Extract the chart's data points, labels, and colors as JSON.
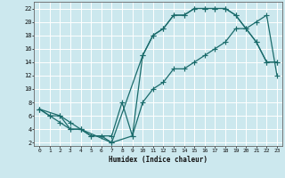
{
  "xlabel": "Humidex (Indice chaleur)",
  "bg_color": "#cce8ee",
  "grid_color": "#ffffff",
  "line_color": "#1a6b6b",
  "xlim": [
    -0.5,
    23.5
  ],
  "ylim": [
    1.5,
    23
  ],
  "xticks": [
    0,
    1,
    2,
    3,
    4,
    5,
    6,
    7,
    8,
    9,
    10,
    11,
    12,
    13,
    14,
    15,
    16,
    17,
    18,
    19,
    20,
    21,
    22,
    23
  ],
  "yticks": [
    2,
    4,
    6,
    8,
    10,
    12,
    14,
    16,
    18,
    20,
    22
  ],
  "line1_x": [
    0,
    1,
    2,
    3,
    4,
    5,
    6,
    7,
    9,
    10,
    11,
    12,
    13,
    14,
    15,
    16,
    17,
    18,
    19,
    20,
    21,
    22,
    23
  ],
  "line1_y": [
    7,
    6,
    6,
    4,
    4,
    3,
    3,
    2,
    3,
    8,
    10,
    11,
    13,
    13,
    14,
    15,
    16,
    17,
    19,
    19,
    20,
    21,
    12
  ],
  "line2_x": [
    0,
    1,
    2,
    3,
    4,
    5,
    7,
    8,
    9,
    10,
    11,
    12,
    13,
    14,
    15,
    16,
    17,
    18,
    19,
    20,
    21,
    22,
    23
  ],
  "line2_y": [
    7,
    6,
    5,
    4,
    4,
    3,
    3,
    8,
    3,
    15,
    18,
    19,
    21,
    21,
    22,
    22,
    22,
    22,
    21,
    19,
    17,
    14,
    14
  ],
  "line3_x": [
    0,
    2,
    3,
    4,
    7,
    10,
    11,
    12,
    13,
    14,
    15,
    16,
    17,
    18,
    19,
    21,
    22,
    23
  ],
  "line3_y": [
    7,
    6,
    5,
    4,
    2,
    15,
    18,
    19,
    21,
    21,
    22,
    22,
    22,
    22,
    21,
    17,
    14,
    14
  ]
}
